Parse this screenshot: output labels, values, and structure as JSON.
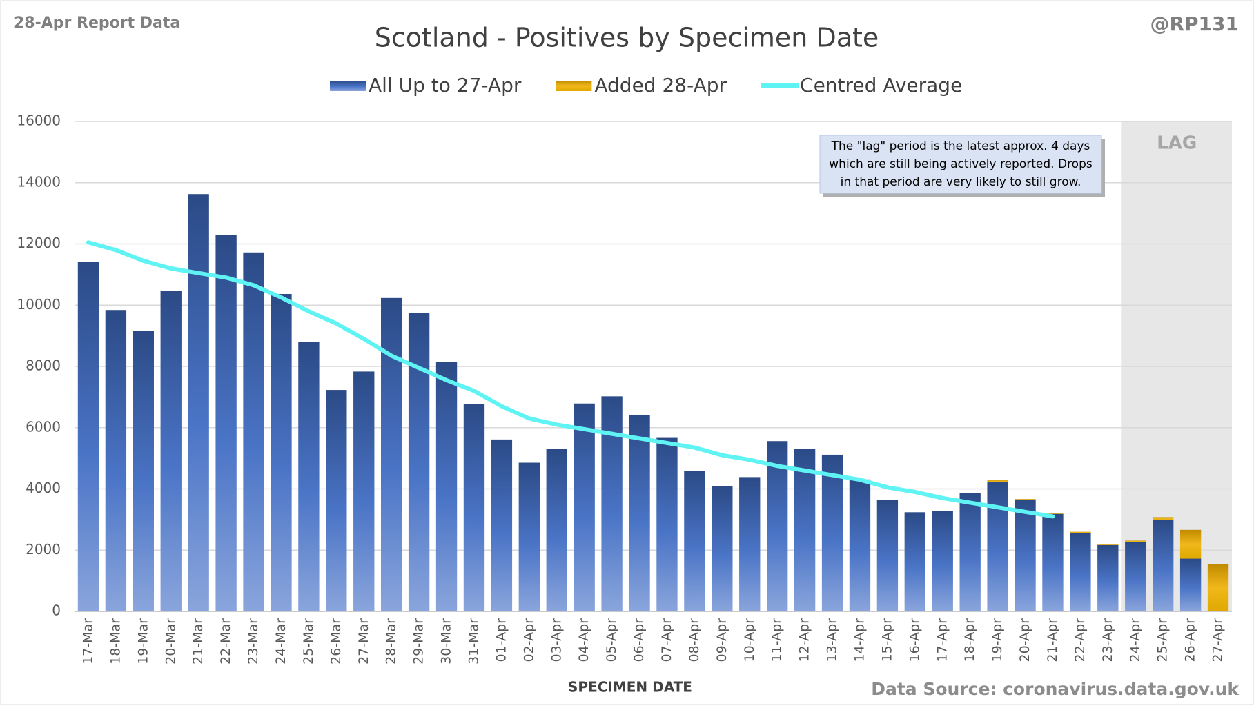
{
  "chart_data": {
    "type": "stacked_bar_line",
    "header_left": "28-Apr Report Data",
    "header_right": "@RP131",
    "title": "Scotland - Positives by Specimen Date",
    "x_label": "SPECIMEN DATE",
    "source": "Data Source: coronavirus.data.gov.uk",
    "annotation": [
      "The \"lag\" period is the latest approx. 4 days",
      "which are still being actively reported.  Drops",
      "in that period are very likely to still grow."
    ],
    "lag_label": "LAG",
    "lag_start": "24-Apr",
    "categories": [
      "17-Mar",
      "18-Mar",
      "19-Mar",
      "20-Mar",
      "21-Mar",
      "22-Mar",
      "23-Mar",
      "24-Mar",
      "25-Mar",
      "26-Mar",
      "27-Mar",
      "28-Mar",
      "29-Mar",
      "30-Mar",
      "31-Mar",
      "01-Apr",
      "02-Apr",
      "03-Apr",
      "04-Apr",
      "05-Apr",
      "06-Apr",
      "07-Apr",
      "08-Apr",
      "09-Apr",
      "10-Apr",
      "11-Apr",
      "12-Apr",
      "13-Apr",
      "14-Apr",
      "15-Apr",
      "16-Apr",
      "17-Apr",
      "18-Apr",
      "19-Apr",
      "20-Apr",
      "21-Apr",
      "22-Apr",
      "23-Apr",
      "24-Apr",
      "25-Apr",
      "26-Apr",
      "27-Apr"
    ],
    "series": [
      {
        "name": "All Up to 27-Apr",
        "kind": "bar",
        "color": "#2d4f8f",
        "values": [
          11410,
          9843,
          9164,
          10470,
          13629,
          12298,
          11723,
          10366,
          8799,
          7232,
          7833,
          10235,
          9739,
          8146,
          6762,
          5614,
          4856,
          5300,
          6789,
          7023,
          6423,
          5666,
          4595,
          4099,
          4386,
          5561,
          5300,
          5117,
          4308,
          3629,
          3238,
          3290,
          3864,
          4230,
          3629,
          3185,
          2559,
          2167,
          2272,
          2977,
          1723,
          0
        ]
      },
      {
        "name": "Added 28-Apr",
        "kind": "bar",
        "color": "#e0a800",
        "values": [
          0,
          0,
          0,
          0,
          0,
          0,
          0,
          0,
          0,
          0,
          0,
          0,
          0,
          0,
          0,
          0,
          0,
          0,
          0,
          0,
          0,
          0,
          0,
          0,
          0,
          0,
          0,
          0,
          0,
          0,
          0,
          0,
          0,
          50,
          40,
          20,
          40,
          20,
          40,
          100,
          940,
          1540
        ]
      },
      {
        "name": "Centred Average",
        "kind": "line",
        "color": "#5ff3f3",
        "values": [
          12050,
          11800,
          11450,
          11200,
          11050,
          10900,
          10650,
          10250,
          9800,
          9400,
          8900,
          8350,
          7950,
          7550,
          7200,
          6700,
          6300,
          6100,
          5950,
          5800,
          5650,
          5500,
          5350,
          5100,
          4950,
          4750,
          4600,
          4450,
          4300,
          4050,
          3900,
          3700,
          3550,
          3400,
          3250,
          3100,
          null,
          null,
          null,
          null,
          null,
          null
        ]
      }
    ],
    "ylim": [
      0,
      16000
    ],
    "yticks": [
      0,
      2000,
      4000,
      6000,
      8000,
      10000,
      12000,
      14000,
      16000
    ],
    "grid": true
  }
}
